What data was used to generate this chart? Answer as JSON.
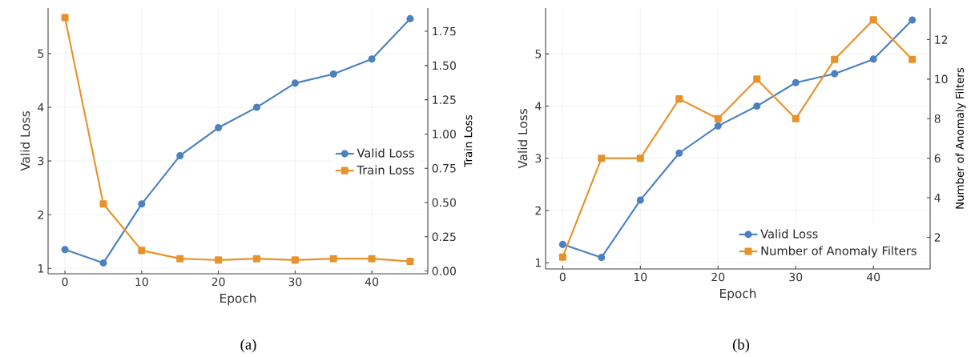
{
  "chart_data": [
    {
      "type": "line",
      "xlabel": "Epoch",
      "ylabel": "Valid Loss",
      "y2label": "Train Loss",
      "annotations": [
        "(a)"
      ],
      "x": [
        0,
        5,
        10,
        15,
        20,
        25,
        30,
        35,
        40,
        45
      ],
      "series": [
        {
          "name": "Valid Loss",
          "color": "#4c81bf",
          "marker": "circle",
          "values": [
            1.35,
            1.1,
            2.2,
            3.1,
            3.62,
            4.0,
            4.45,
            4.62,
            4.9,
            5.65
          ]
        },
        {
          "name": "Train Loss",
          "color": "#e8922b",
          "marker": "square",
          "axis": "y2",
          "values": [
            1.85,
            0.49,
            0.15,
            0.09,
            0.08,
            0.09,
            0.08,
            0.09,
            0.09,
            0.07
          ]
        }
      ],
      "xlim": [
        -2.2,
        47.3
      ],
      "xticks": [
        0,
        10,
        20,
        30,
        40
      ],
      "ylim": [
        0.9,
        5.85
      ],
      "yticks": [
        1,
        2,
        3,
        4,
        5
      ],
      "y2lim": [
        -0.02,
        1.92
      ],
      "y2ticks": [
        {
          "value": 0,
          "label": "0.00"
        },
        {
          "value": 0.25,
          "label": "0.25"
        },
        {
          "value": 0.5,
          "label": "0.50"
        },
        {
          "value": 0.75,
          "label": "0.75"
        },
        {
          "value": 1,
          "label": "1.00"
        },
        {
          "value": 1.25,
          "label": "1.25"
        },
        {
          "value": 1.5,
          "label": "1.50"
        },
        {
          "value": 1.75,
          "label": "1.75"
        }
      ],
      "grid": true,
      "legend": "right"
    },
    {
      "type": "line",
      "xlabel": "Epoch",
      "ylabel": "Valid Loss",
      "y2label": "Number of Anomaly Filters",
      "annotations": [
        "(b)"
      ],
      "x": [
        0,
        5,
        10,
        15,
        20,
        25,
        30,
        35,
        40,
        45
      ],
      "series": [
        {
          "name": "Valid Loss",
          "color": "#4c81bf",
          "marker": "circle",
          "values": [
            1.35,
            1.1,
            2.2,
            3.1,
            3.62,
            4.0,
            4.45,
            4.62,
            4.9,
            5.65
          ]
        },
        {
          "name": "Number of Anomaly Filters",
          "color": "#e8922b",
          "marker": "square",
          "axis": "y2",
          "values": [
            1,
            6,
            6,
            9,
            8,
            10,
            8,
            11,
            13,
            11
          ]
        }
      ],
      "xlim": [
        -2.2,
        47.3
      ],
      "xticks": [
        0,
        10,
        20,
        30,
        40
      ],
      "ylim": [
        0.88,
        5.88
      ],
      "yticks": [
        1,
        2,
        3,
        4,
        5
      ],
      "y2lim": [
        0.4,
        13.6
      ],
      "y2ticks": [
        2,
        4,
        6,
        8,
        10,
        12
      ],
      "grid": true,
      "legend": "bottom right"
    }
  ]
}
